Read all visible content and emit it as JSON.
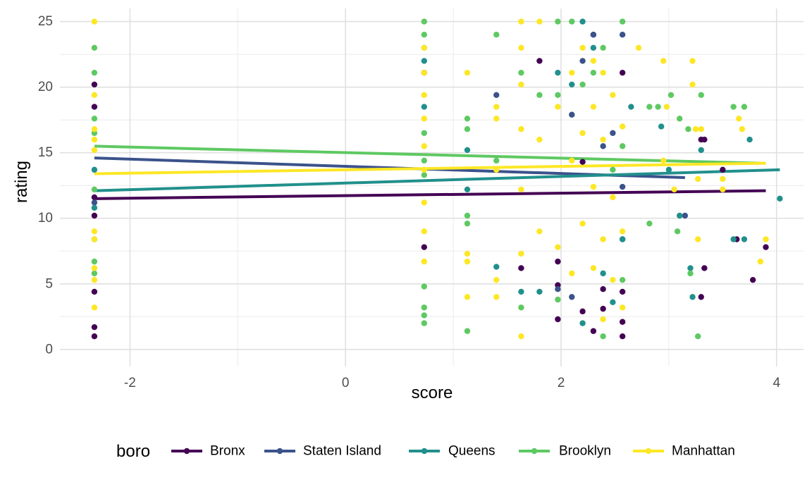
{
  "chart_data": {
    "type": "scatter",
    "xlabel": "score",
    "ylabel": "rating",
    "xlim": [
      -2.65,
      4.25
    ],
    "ylim": [
      -1.3,
      26.0
    ],
    "x_ticks": [
      -2,
      0,
      2,
      4
    ],
    "y_ticks": [
      0,
      5,
      10,
      15,
      20,
      25
    ],
    "grid": true,
    "legend": {
      "title": "boro",
      "position": "bottom"
    },
    "series": [
      {
        "name": "Bronx",
        "color": "#440154",
        "trend": [
          [
            -2.33,
            11.5
          ],
          [
            3.9,
            12.1
          ]
        ],
        "points": [
          [
            -2.33,
            1.0
          ],
          [
            -2.33,
            1.7
          ],
          [
            -2.33,
            4.4
          ],
          [
            -2.33,
            10.2
          ],
          [
            -2.33,
            11.6
          ],
          [
            -2.33,
            18.5
          ],
          [
            -2.33,
            20.2
          ],
          [
            0.73,
            7.8
          ],
          [
            0.73,
            21.1
          ],
          [
            1.63,
            6.2
          ],
          [
            1.8,
            22.0
          ],
          [
            1.97,
            2.3
          ],
          [
            1.97,
            4.9
          ],
          [
            1.97,
            6.7
          ],
          [
            2.2,
            2.9
          ],
          [
            2.2,
            14.3
          ],
          [
            2.3,
            1.4
          ],
          [
            2.3,
            24.0
          ],
          [
            2.39,
            3.1
          ],
          [
            2.39,
            4.6
          ],
          [
            2.57,
            1.0
          ],
          [
            2.57,
            2.1
          ],
          [
            2.57,
            4.4
          ],
          [
            2.57,
            21.1
          ],
          [
            3.3,
            16.0
          ],
          [
            3.3,
            4.0
          ],
          [
            3.33,
            16.0
          ],
          [
            3.33,
            6.2
          ],
          [
            3.5,
            13.7
          ],
          [
            3.63,
            8.4
          ],
          [
            3.78,
            5.3
          ],
          [
            3.9,
            7.8
          ]
        ]
      },
      {
        "name": "Staten Island",
        "color": "#3b528b",
        "trend": [
          [
            -2.33,
            14.6
          ],
          [
            3.15,
            13.1
          ]
        ],
        "points": [
          [
            -2.33,
            11.2
          ],
          [
            1.4,
            19.4
          ],
          [
            1.97,
            4.6
          ],
          [
            2.1,
            4.0
          ],
          [
            2.1,
            17.9
          ],
          [
            2.2,
            22.0
          ],
          [
            2.3,
            24.0
          ],
          [
            2.39,
            15.5
          ],
          [
            2.48,
            16.5
          ],
          [
            2.57,
            24.0
          ],
          [
            2.57,
            12.4
          ],
          [
            2.57,
            8.4
          ],
          [
            3.15,
            10.2
          ]
        ]
      },
      {
        "name": "Queens",
        "color": "#21908c",
        "trend": [
          [
            -2.33,
            12.1
          ],
          [
            4.03,
            13.7
          ]
        ],
        "points": [
          [
            -2.33,
            8.4
          ],
          [
            -2.33,
            10.8
          ],
          [
            -2.33,
            13.7
          ],
          [
            0.73,
            18.5
          ],
          [
            0.73,
            22.0
          ],
          [
            1.13,
            12.2
          ],
          [
            1.13,
            15.2
          ],
          [
            1.4,
            6.3
          ],
          [
            1.63,
            4.4
          ],
          [
            1.8,
            4.4
          ],
          [
            1.97,
            21.1
          ],
          [
            2.1,
            20.2
          ],
          [
            2.2,
            25.0
          ],
          [
            2.2,
            2.0
          ],
          [
            2.3,
            23.0
          ],
          [
            2.39,
            5.8
          ],
          [
            2.48,
            3.6
          ],
          [
            2.57,
            8.4
          ],
          [
            2.65,
            18.5
          ],
          [
            2.93,
            17.0
          ],
          [
            3.0,
            13.7
          ],
          [
            3.1,
            10.2
          ],
          [
            3.2,
            6.2
          ],
          [
            3.22,
            4.0
          ],
          [
            3.3,
            15.2
          ],
          [
            3.6,
            8.4
          ],
          [
            3.7,
            8.4
          ],
          [
            3.75,
            16.0
          ],
          [
            4.03,
            11.5
          ]
        ]
      },
      {
        "name": "Brooklyn",
        "color": "#5ec962",
        "trend": [
          [
            -2.33,
            15.5
          ],
          [
            3.85,
            14.2
          ]
        ],
        "points": [
          [
            -2.33,
            23.0
          ],
          [
            -2.33,
            21.1
          ],
          [
            -2.33,
            17.6
          ],
          [
            -2.33,
            16.5
          ],
          [
            -2.33,
            12.2
          ],
          [
            -2.33,
            6.7
          ],
          [
            -2.33,
            5.8
          ],
          [
            0.73,
            25.0
          ],
          [
            0.73,
            24.0
          ],
          [
            0.73,
            23.0
          ],
          [
            0.73,
            16.5
          ],
          [
            0.73,
            14.4
          ],
          [
            0.73,
            13.3
          ],
          [
            0.73,
            4.8
          ],
          [
            0.73,
            3.2
          ],
          [
            0.73,
            2.6
          ],
          [
            0.73,
            2.0
          ],
          [
            1.13,
            17.6
          ],
          [
            1.13,
            16.8
          ],
          [
            1.13,
            10.2
          ],
          [
            1.13,
            9.6
          ],
          [
            1.13,
            1.4
          ],
          [
            1.4,
            24.0
          ],
          [
            1.4,
            14.4
          ],
          [
            1.63,
            21.1
          ],
          [
            1.63,
            3.2
          ],
          [
            1.8,
            19.4
          ],
          [
            1.97,
            25.0
          ],
          [
            1.97,
            19.4
          ],
          [
            1.97,
            3.8
          ],
          [
            2.1,
            25.0
          ],
          [
            2.2,
            20.2
          ],
          [
            2.3,
            21.1
          ],
          [
            2.39,
            23.0
          ],
          [
            2.39,
            1.0
          ],
          [
            2.48,
            13.7
          ],
          [
            2.57,
            25.0
          ],
          [
            2.57,
            15.5
          ],
          [
            2.57,
            5.3
          ],
          [
            2.82,
            9.6
          ],
          [
            2.82,
            18.5
          ],
          [
            2.9,
            18.5
          ],
          [
            3.02,
            19.4
          ],
          [
            3.08,
            9.0
          ],
          [
            3.1,
            17.6
          ],
          [
            3.18,
            16.8
          ],
          [
            3.2,
            5.8
          ],
          [
            3.27,
            1.0
          ],
          [
            3.3,
            19.4
          ],
          [
            3.6,
            18.5
          ],
          [
            3.7,
            18.5
          ]
        ]
      },
      {
        "name": "Manhattan",
        "color": "#fde725",
        "trend": [
          [
            -2.33,
            13.4
          ],
          [
            3.9,
            14.2
          ]
        ],
        "points": [
          [
            -2.33,
            25.0
          ],
          [
            -2.33,
            19.4
          ],
          [
            -2.33,
            16.8
          ],
          [
            -2.33,
            16.0
          ],
          [
            -2.33,
            15.2
          ],
          [
            -2.33,
            9.0
          ],
          [
            -2.33,
            8.4
          ],
          [
            -2.33,
            6.2
          ],
          [
            -2.33,
            5.3
          ],
          [
            -2.33,
            3.2
          ],
          [
            0.73,
            23.0
          ],
          [
            0.73,
            21.1
          ],
          [
            0.73,
            19.4
          ],
          [
            0.73,
            17.6
          ],
          [
            0.73,
            15.5
          ],
          [
            0.73,
            13.7
          ],
          [
            0.73,
            11.2
          ],
          [
            0.73,
            9.0
          ],
          [
            0.73,
            6.7
          ],
          [
            1.13,
            21.1
          ],
          [
            1.13,
            7.3
          ],
          [
            1.13,
            6.7
          ],
          [
            1.13,
            4.0
          ],
          [
            1.4,
            18.5
          ],
          [
            1.4,
            17.6
          ],
          [
            1.4,
            13.7
          ],
          [
            1.4,
            5.3
          ],
          [
            1.4,
            4.0
          ],
          [
            1.63,
            25.0
          ],
          [
            1.63,
            23.0
          ],
          [
            1.63,
            20.2
          ],
          [
            1.63,
            16.8
          ],
          [
            1.63,
            12.2
          ],
          [
            1.63,
            7.3
          ],
          [
            1.63,
            1.0
          ],
          [
            1.8,
            25.0
          ],
          [
            1.8,
            16.0
          ],
          [
            1.8,
            9.0
          ],
          [
            1.97,
            18.5
          ],
          [
            1.97,
            7.8
          ],
          [
            2.1,
            21.1
          ],
          [
            2.1,
            14.4
          ],
          [
            2.1,
            5.8
          ],
          [
            2.2,
            23.0
          ],
          [
            2.2,
            16.5
          ],
          [
            2.2,
            9.6
          ],
          [
            2.3,
            22.0
          ],
          [
            2.3,
            18.5
          ],
          [
            2.3,
            12.4
          ],
          [
            2.3,
            6.2
          ],
          [
            2.39,
            21.1
          ],
          [
            2.39,
            16.0
          ],
          [
            2.39,
            8.4
          ],
          [
            2.39,
            2.3
          ],
          [
            2.48,
            19.4
          ],
          [
            2.48,
            11.6
          ],
          [
            2.48,
            5.3
          ],
          [
            2.57,
            17.0
          ],
          [
            2.57,
            9.0
          ],
          [
            2.57,
            3.2
          ],
          [
            2.72,
            23.0
          ],
          [
            2.95,
            22.0
          ],
          [
            2.95,
            14.4
          ],
          [
            2.98,
            18.5
          ],
          [
            3.05,
            12.2
          ],
          [
            3.22,
            22.0
          ],
          [
            3.22,
            20.2
          ],
          [
            3.25,
            16.8
          ],
          [
            3.27,
            13.0
          ],
          [
            3.27,
            8.4
          ],
          [
            3.3,
            16.8
          ],
          [
            3.5,
            12.2
          ],
          [
            3.5,
            13.0
          ],
          [
            3.65,
            17.6
          ],
          [
            3.68,
            16.8
          ],
          [
            3.85,
            6.7
          ],
          [
            3.9,
            8.4
          ]
        ]
      }
    ]
  }
}
